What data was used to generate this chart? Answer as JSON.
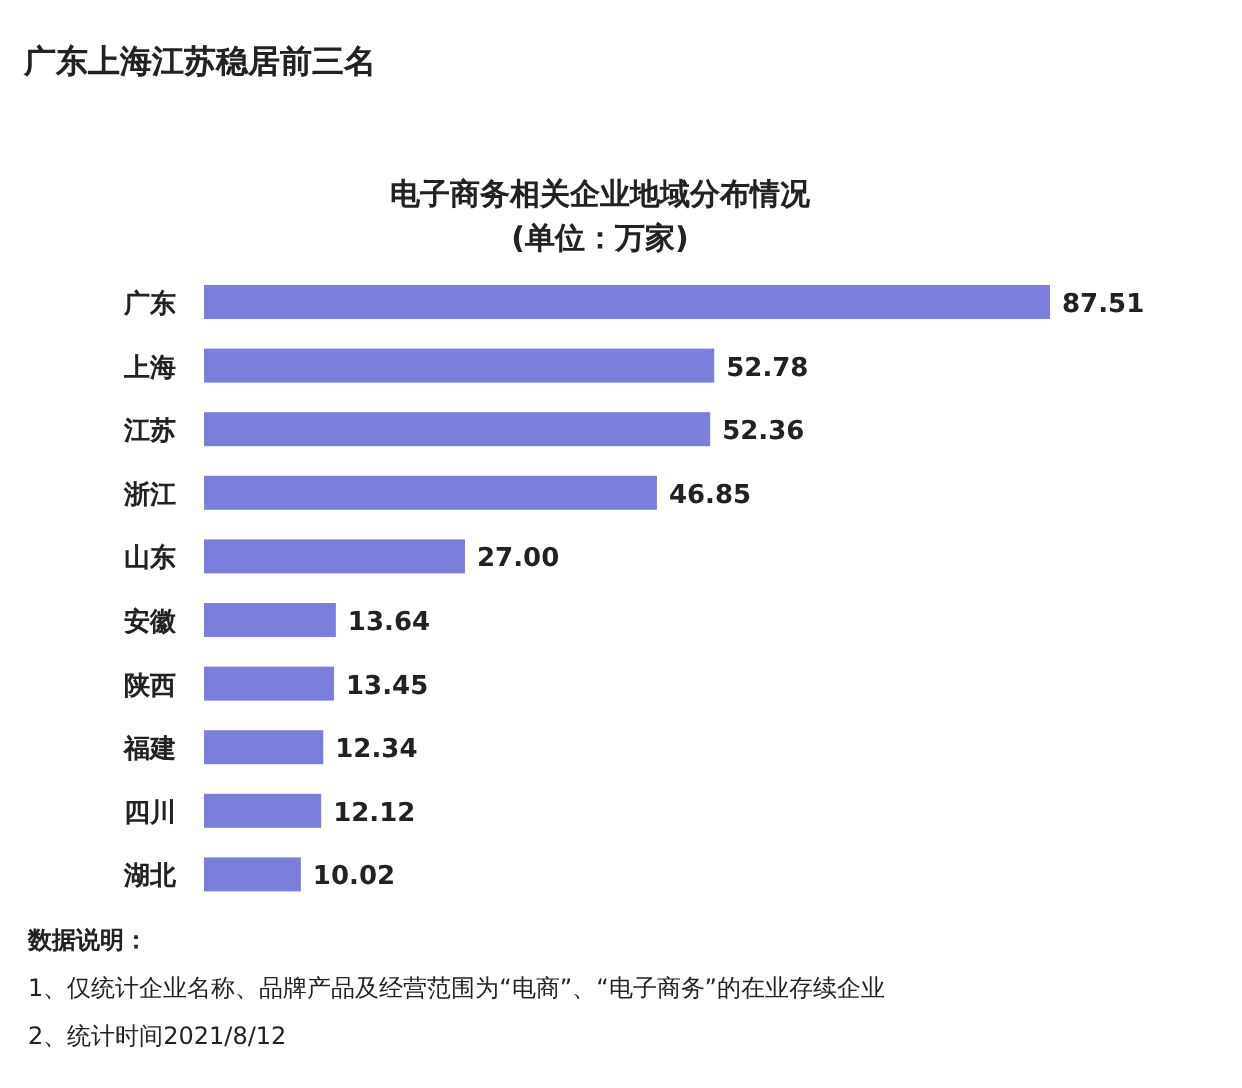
{
  "chart_data": {
    "type": "bar",
    "orientation": "horizontal",
    "title": "广东上海江苏稳居前三名",
    "subtitle": "电子商务相关企业地域分布情况\n(单位：万家)",
    "categories": [
      "广东",
      "上海",
      "江苏",
      "浙江",
      "山东",
      "安徽",
      "陕西",
      "福建",
      "四川",
      "湖北"
    ],
    "values": [
      87.51,
      52.78,
      52.36,
      46.85,
      27.0,
      13.64,
      13.45,
      12.34,
      12.12,
      10.02
    ],
    "value_labels": [
      "87.51",
      "52.78",
      "52.36",
      "46.85",
      "27.00",
      "13.64",
      "13.45",
      "12.34",
      "12.12",
      "10.02"
    ],
    "color": "#7b7fdb",
    "annotations": [
      "数据说明：",
      "1、仅统计企业名称、品牌产品及经营范围为“电商”、“电子商务”的在业存续企业",
      "2、统计时间2021/8/12"
    ]
  }
}
